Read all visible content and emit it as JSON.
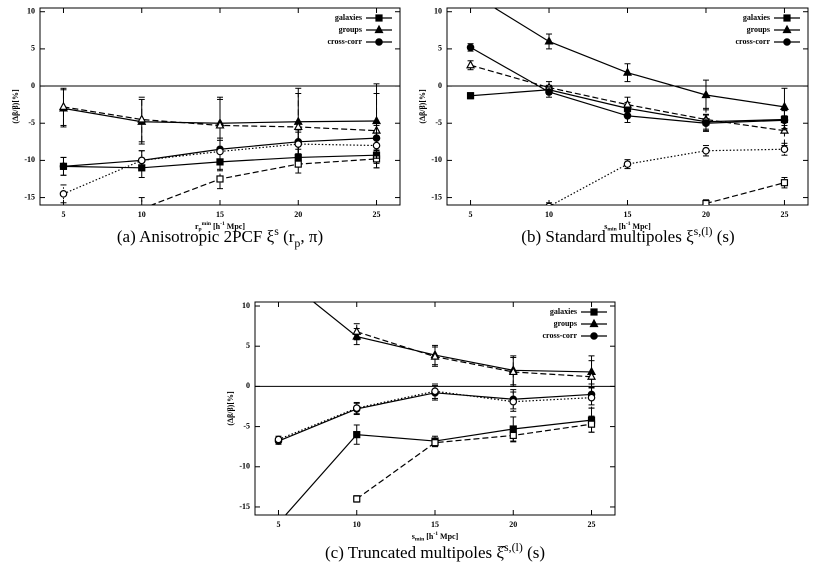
{
  "chart_data": [
    {
      "type": "line",
      "ylabel": "(Δβ/β)[%]",
      "xlabel": {
        "base": "r",
        "sub": "p",
        "sup": "min",
        "unit": " [h",
        "unit_sup": "-1",
        "unit_end": " Mpc]"
      },
      "caption": {
        "main": "(a) Anisotropic 2PCF ",
        "symbol": "ξ",
        "sup": "s",
        "arg": " (r",
        "sub": "p",
        "end": ", π)"
      },
      "x": [
        5,
        10,
        15,
        20,
        25
      ],
      "xlim": [
        3.5,
        26.5
      ],
      "xticks": [
        5,
        10,
        15,
        20,
        25
      ],
      "ylim": [
        -16,
        10.5
      ],
      "yticks": [
        -15,
        -10,
        -5,
        0,
        5,
        10
      ],
      "zero_line": 0,
      "series": [
        {
          "name": "galaxies",
          "color": "#000000",
          "marker": "square",
          "filled": true,
          "dash": "solid",
          "values": [
            -10.8,
            -11,
            -10.2,
            -9.6,
            -9.3
          ],
          "errors": [
            1.2,
            1.3,
            1.2,
            1.1,
            1.1
          ]
        },
        {
          "color": "#000000",
          "marker": "square",
          "filled": false,
          "dash": "dashed",
          "values": [
            null,
            -16.5,
            -12.5,
            -10.5,
            -9.8
          ],
          "errors": [
            null,
            1.5,
            1.3,
            1.2,
            1.2
          ]
        },
        {
          "name": "groups",
          "color": "#000000",
          "marker": "triangle",
          "filled": true,
          "dash": "solid",
          "values": [
            -3,
            -4.8,
            -5,
            -4.8,
            -4.7
          ],
          "errors": [
            2.5,
            3,
            3.5,
            4.5,
            5
          ]
        },
        {
          "color": "#000000",
          "marker": "triangle",
          "filled": false,
          "dash": "dashed",
          "values": [
            -2.8,
            -4.5,
            -5.3,
            -5.5,
            -6
          ],
          "errors": [
            2.5,
            3,
            3.5,
            4.5,
            5
          ]
        },
        {
          "name": "cross-corr",
          "color": "#000000",
          "marker": "circle",
          "filled": true,
          "dash": "solid",
          "values": [
            -10.8,
            -10,
            -8.5,
            -7.5,
            -7
          ],
          "errors": [
            1.2,
            1.3,
            1.5,
            1.6,
            1.7
          ]
        },
        {
          "color": "#000000",
          "marker": "circle",
          "filled": false,
          "dash": "dotted",
          "values": [
            -14.5,
            -10,
            -8.8,
            -7.8,
            -8
          ],
          "errors": [
            1.2,
            1.3,
            1.5,
            1.6,
            1.7
          ]
        }
      ]
    },
    {
      "type": "line",
      "ylabel": "(Δβ/β)[%]",
      "xlabel": {
        "base": "s",
        "sub": "min",
        "unit": " [h",
        "unit_sup": "-1",
        "unit_end": " Mpc]"
      },
      "caption": {
        "main": "(b) Standard multipoles ",
        "symbol": "ξ",
        "sup": "s,(l)",
        "arg": " (s)"
      },
      "x": [
        5,
        10,
        15,
        20,
        25
      ],
      "xlim": [
        3.5,
        26.5
      ],
      "xticks": [
        5,
        10,
        15,
        20,
        25
      ],
      "ylim": [
        -16,
        10.5
      ],
      "yticks": [
        -15,
        -10,
        -5,
        0,
        5,
        10
      ],
      "zero_line": 0,
      "series": [
        {
          "name": "galaxies",
          "color": "#000000",
          "marker": "square",
          "filled": true,
          "dash": "solid",
          "values": [
            -1.3,
            -0.5,
            -3,
            -4.8,
            -4.5
          ],
          "errors": [
            0.4,
            0.6,
            0.8,
            1,
            1.2
          ]
        },
        {
          "color": "#000000",
          "marker": "square",
          "filled": false,
          "dash": "dashed",
          "values": [
            null,
            null,
            null,
            -15.8,
            -13
          ],
          "errors": [
            null,
            null,
            null,
            0.5,
            0.7
          ]
        },
        {
          "name": "groups",
          "color": "#000000",
          "marker": "triangle",
          "filled": true,
          "dash": "solid",
          "values": [
            12.5,
            6,
            1.8,
            -1.2,
            -2.8
          ],
          "errors": [
            1,
            1,
            1.2,
            2,
            2.5
          ]
        },
        {
          "color": "#000000",
          "marker": "triangle",
          "filled": false,
          "dash": "dashed",
          "values": [
            2.8,
            -0.2,
            -2.5,
            -4.5,
            -6
          ],
          "errors": [
            0.6,
            0.8,
            1,
            1.5,
            2
          ]
        },
        {
          "name": "cross-corr",
          "color": "#000000",
          "marker": "circle",
          "filled": true,
          "dash": "solid",
          "values": [
            5.2,
            -0.8,
            -4,
            -5,
            -4.6
          ],
          "errors": [
            0.5,
            0.7,
            0.9,
            1.1,
            1.3
          ]
        },
        {
          "color": "#000000",
          "marker": "circle",
          "filled": false,
          "dash": "dotted",
          "values": [
            null,
            -16.2,
            -10.5,
            -8.7,
            -8.5
          ],
          "errors": [
            null,
            0.5,
            0.6,
            0.7,
            0.8
          ]
        }
      ]
    },
    {
      "type": "line",
      "ylabel": "(Δβ/β)[%]",
      "xlabel": {
        "base": "s",
        "sub": "min",
        "unit": " [h",
        "unit_sup": "-1",
        "unit_end": " Mpc]"
      },
      "caption": {
        "main": "(c) Truncated multipoles ",
        "symbol": "ξ̂",
        "sup": "s,(l)",
        "arg": " (s)"
      },
      "x": [
        5,
        10,
        15,
        20,
        25
      ],
      "xlim": [
        3.5,
        26.5
      ],
      "xticks": [
        5,
        10,
        15,
        20,
        25
      ],
      "ylim": [
        -16,
        10.5
      ],
      "yticks": [
        -15,
        -10,
        -5,
        0,
        5,
        10
      ],
      "zero_line": 0,
      "series": [
        {
          "name": "galaxies",
          "color": "#000000",
          "marker": "square",
          "filled": true,
          "dash": "solid",
          "values": [
            -17,
            -6,
            -6.8,
            -5.3,
            -4.2
          ],
          "errors": [
            null,
            1.2,
            0.6,
            1.5,
            1.5
          ]
        },
        {
          "color": "#000000",
          "marker": "square",
          "filled": false,
          "dash": "dashed",
          "values": [
            null,
            -14,
            -7,
            -6.1,
            -4.7
          ],
          "errors": [
            null,
            0.4,
            0.5,
            0.8,
            1
          ]
        },
        {
          "name": "groups",
          "color": "#000000",
          "marker": "triangle",
          "filled": true,
          "dash": "solid",
          "values": [
            14,
            6.2,
            3.9,
            2,
            1.8
          ],
          "errors": [
            null,
            1,
            1.2,
            1.8,
            2
          ]
        },
        {
          "color": "#000000",
          "marker": "triangle",
          "filled": false,
          "dash": "dashed",
          "values": [
            null,
            6.8,
            3.7,
            1.8,
            1.2
          ],
          "errors": [
            null,
            1,
            1.2,
            1.8,
            2
          ]
        },
        {
          "name": "cross-corr",
          "color": "#000000",
          "marker": "circle",
          "filled": true,
          "dash": "solid",
          "values": [
            -6.8,
            -2.8,
            -0.8,
            -1.6,
            -1
          ],
          "errors": [
            0.4,
            0.7,
            0.9,
            1.2,
            1.3
          ]
        },
        {
          "color": "#000000",
          "marker": "circle",
          "filled": false,
          "dash": "dotted",
          "values": [
            -6.6,
            -2.7,
            -0.6,
            -1.9,
            -1.4
          ],
          "errors": [
            0.4,
            0.7,
            0.9,
            1.2,
            1.3
          ]
        }
      ]
    }
  ]
}
